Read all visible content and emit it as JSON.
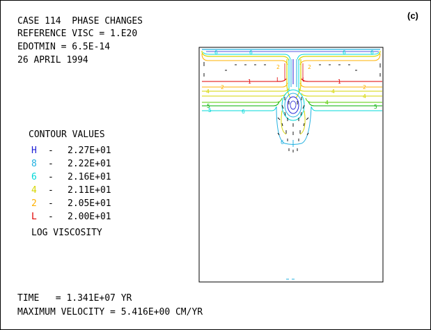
{
  "panel_tag": "(c)",
  "header": {
    "line1": "CASE 114  PHASE CHANGES",
    "line2": "REFERENCE VISC = 1.E20",
    "line3": "EDOTMIN = 6.5E-14",
    "line4": "26 APRIL 1994"
  },
  "legend": {
    "title": "CONTOUR VALUES",
    "entries": [
      {
        "symbol": "H",
        "value": "2.27E+01",
        "color": "#1f1fd6"
      },
      {
        "symbol": "8",
        "value": "2.22E+01",
        "color": "#20b0e0"
      },
      {
        "symbol": "6",
        "value": "2.16E+01",
        "color": "#00d8d8"
      },
      {
        "symbol": "4",
        "value": "2.11E+01",
        "color": "#d6d600"
      },
      {
        "symbol": "2",
        "value": "2.05E+01",
        "color": "#ffb000"
      },
      {
        "symbol": "L",
        "value": "2.00E+01",
        "color": "#e00000"
      }
    ],
    "dash": "-",
    "caption": "LOG VISCOSITY"
  },
  "footer": {
    "time": "TIME   = 1.341E+07 YR",
    "max_velocity": "MAXIMUM VELOCITY = 5.416E+00 CM/YR"
  },
  "plot": {
    "contour_label_1": "1",
    "contour_label_L": "L",
    "contour_label_2": "2",
    "contour_label_4": "4",
    "contour_label_5": "5",
    "contour_label_6": "6"
  }
}
